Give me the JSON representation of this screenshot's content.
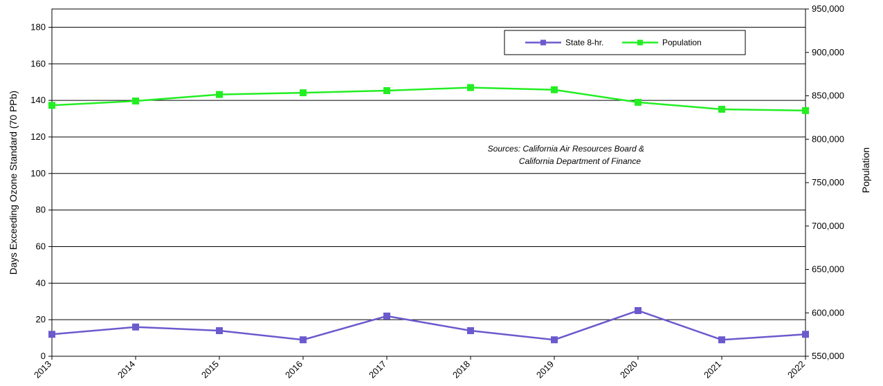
{
  "chart_data": {
    "type": "line",
    "title": "",
    "xlabel": "",
    "ylabel": "Days Exceeding Ozone Standard (70 PPb)",
    "y2label": "Population",
    "categories": [
      "2013",
      "2014",
      "2015",
      "2016",
      "2017",
      "2018",
      "2019",
      "2020",
      "2021",
      "2022"
    ],
    "ylim": [
      0,
      190
    ],
    "yticks": [
      "0",
      "20",
      "40",
      "60",
      "80",
      "100",
      "120",
      "140",
      "160",
      "180"
    ],
    "y2lim": [
      550000,
      950000
    ],
    "y2ticks": [
      "550,000",
      "600,000",
      "650,000",
      "700,000",
      "750,000",
      "800,000",
      "850,000",
      "900,000",
      "950,000"
    ],
    "grid": true,
    "legend": "top-right",
    "series": [
      {
        "name": "State 8-hr.",
        "axis": "left",
        "color": "#6a5acd",
        "values": [
          12,
          16,
          14,
          9,
          22,
          14,
          9,
          25,
          9,
          12
        ]
      },
      {
        "name": "Population",
        "axis": "right",
        "color": "#22ee22",
        "values": [
          839000,
          844000,
          851500,
          853500,
          856000,
          859500,
          857000,
          842500,
          834500,
          833000
        ]
      }
    ],
    "annotation": [
      "Sources: California Air Resources Board &",
      "California Department of Finance"
    ]
  }
}
